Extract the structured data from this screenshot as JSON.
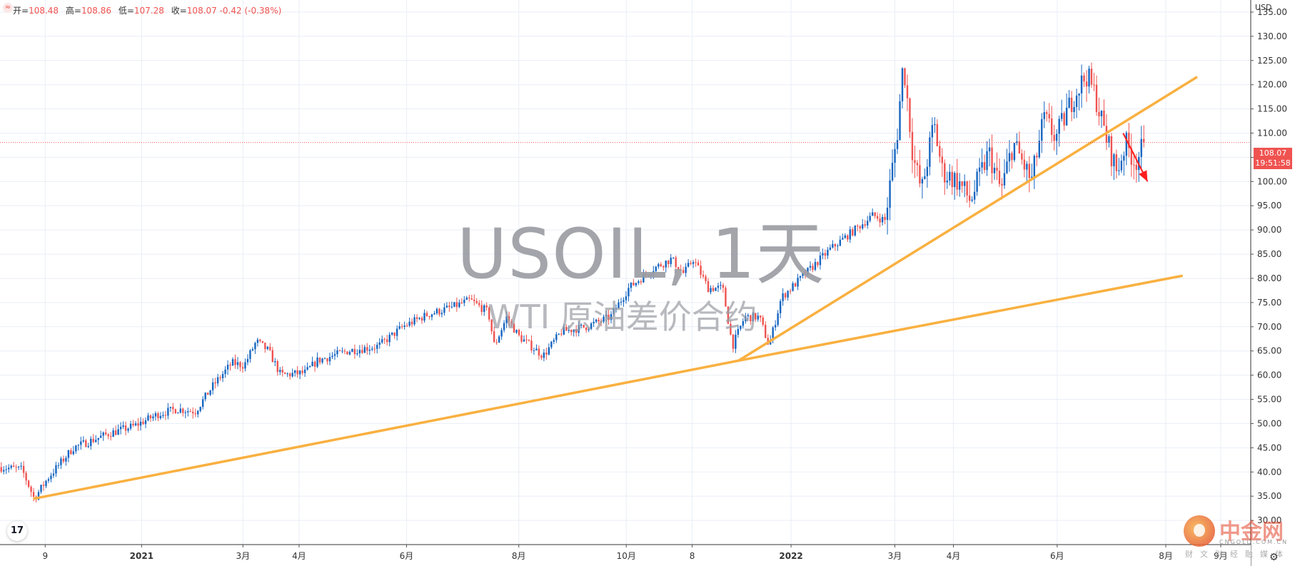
{
  "header": {
    "ohlc": [
      {
        "k": "开",
        "v": "108.48"
      },
      {
        "k": "高",
        "v": "108.86"
      },
      {
        "k": "低",
        "v": "107.28"
      },
      {
        "k": "收",
        "v": "108.07 -0.42 (-0.38%)"
      }
    ]
  },
  "currency": "USD",
  "watermark": {
    "title": "USOIL, 1天",
    "subtitle": "WTI 原油差价合约"
  },
  "price_tag": {
    "price": "108.07",
    "countdown": "19:51:58"
  },
  "tv_logo_text": "17",
  "source_logo": {
    "name": "中金网",
    "en": "CNGOLD.COM.CN",
    "sub": "财文财经融媒体"
  },
  "colors": {
    "up": "#1565c0",
    "down": "#ef5350",
    "trend": "#f9b040",
    "arrow": "#ff1e1e",
    "grid": "#e9eef6",
    "last_price": "#ef5350"
  },
  "chart_data": {
    "type": "candlestick",
    "symbol": "USOIL",
    "interval": "1天",
    "ylim": [
      25,
      137.5
    ],
    "yticks": [
      "30.00",
      "35.00",
      "40.00",
      "45.00",
      "50.00",
      "55.00",
      "60.00",
      "65.00",
      "70.00",
      "75.00",
      "80.00",
      "85.00",
      "90.00",
      "95.00",
      "100.00",
      "105.00",
      "110.00",
      "115.00",
      "120.00",
      "125.00",
      "130.00",
      "135.00"
    ],
    "xticks": [
      {
        "label": "9",
        "t": 0.037
      },
      {
        "label": "2021",
        "t": 0.116
      },
      {
        "label": "3月",
        "t": 0.199
      },
      {
        "label": "4月",
        "t": 0.245
      },
      {
        "label": "6月",
        "t": 0.333
      },
      {
        "label": "8月",
        "t": 0.425
      },
      {
        "label": "10月",
        "t": 0.513
      },
      {
        "label": "8",
        "t": 0.567
      },
      {
        "label": "2022",
        "t": 0.648
      },
      {
        "label": "3月",
        "t": 0.733
      },
      {
        "label": "4月",
        "t": 0.781
      },
      {
        "label": "6月",
        "t": 0.866
      },
      {
        "label": "8月",
        "t": 0.955
      },
      {
        "label": "9月",
        "t": 1.0
      }
    ],
    "price_path": [
      [
        0.0,
        41.0
      ],
      [
        0.018,
        40.5
      ],
      [
        0.028,
        34.5
      ],
      [
        0.04,
        39.0
      ],
      [
        0.06,
        45.0
      ],
      [
        0.09,
        48.0
      ],
      [
        0.11,
        49.5
      ],
      [
        0.13,
        52.0
      ],
      [
        0.145,
        53.0
      ],
      [
        0.16,
        52.5
      ],
      [
        0.175,
        58.0
      ],
      [
        0.19,
        62.5
      ],
      [
        0.2,
        62.0
      ],
      [
        0.21,
        67.0
      ],
      [
        0.22,
        65.0
      ],
      [
        0.23,
        60.0
      ],
      [
        0.25,
        60.5
      ],
      [
        0.26,
        63.0
      ],
      [
        0.285,
        65.0
      ],
      [
        0.31,
        66.0
      ],
      [
        0.33,
        70.0
      ],
      [
        0.35,
        72.5
      ],
      [
        0.37,
        74.0
      ],
      [
        0.385,
        75.5
      ],
      [
        0.4,
        73.0
      ],
      [
        0.405,
        66.0
      ],
      [
        0.415,
        72.0
      ],
      [
        0.425,
        68.0
      ],
      [
        0.445,
        64.0
      ],
      [
        0.46,
        69.0
      ],
      [
        0.48,
        70.0
      ],
      [
        0.5,
        72.0
      ],
      [
        0.515,
        78.0
      ],
      [
        0.535,
        82.0
      ],
      [
        0.55,
        84.0
      ],
      [
        0.56,
        81.0
      ],
      [
        0.568,
        84.0
      ],
      [
        0.58,
        78.0
      ],
      [
        0.592,
        78.0
      ],
      [
        0.6,
        66.0
      ],
      [
        0.61,
        72.0
      ],
      [
        0.622,
        72.0
      ],
      [
        0.63,
        66.0
      ],
      [
        0.64,
        76.0
      ],
      [
        0.66,
        81.0
      ],
      [
        0.68,
        86.0
      ],
      [
        0.7,
        90.0
      ],
      [
        0.715,
        93.0
      ],
      [
        0.725,
        92.0
      ],
      [
        0.735,
        110.0
      ],
      [
        0.74,
        125.0
      ],
      [
        0.748,
        105.0
      ],
      [
        0.755,
        98.0
      ],
      [
        0.765,
        112.0
      ],
      [
        0.772,
        102.0
      ],
      [
        0.785,
        100.0
      ],
      [
        0.795,
        96.0
      ],
      [
        0.81,
        106.0
      ],
      [
        0.82,
        98.0
      ],
      [
        0.83,
        108.0
      ],
      [
        0.845,
        100.0
      ],
      [
        0.855,
        113.0
      ],
      [
        0.865,
        109.0
      ],
      [
        0.88,
        118.0
      ],
      [
        0.89,
        122.0
      ],
      [
        0.897,
        118.0
      ],
      [
        0.905,
        110.0
      ],
      [
        0.915,
        102.0
      ],
      [
        0.922,
        108.0
      ],
      [
        0.93,
        104.0
      ],
      [
        0.938,
        108.07
      ]
    ],
    "trendlines": [
      {
        "from": [
          0.028,
          34.5
        ],
        "to": [
          0.605,
          63.0
        ]
      },
      {
        "from": [
          0.605,
          63.0
        ],
        "to": [
          0.968,
          80.5
        ]
      },
      {
        "from": [
          0.605,
          63.0
        ],
        "to": [
          0.98,
          121.5
        ]
      }
    ],
    "last_price": 108.07,
    "arrow": {
      "from": [
        0.92,
        110.0
      ],
      "to": [
        0.94,
        100.0
      ]
    }
  }
}
